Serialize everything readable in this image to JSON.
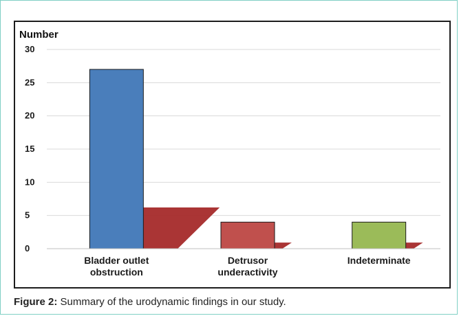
{
  "chart_data": {
    "type": "bar",
    "ylabel": "Number",
    "ylim": [
      0,
      30
    ],
    "yticks": [
      0,
      5,
      10,
      15,
      20,
      25,
      30
    ],
    "categories": [
      "Bladder outlet obstruction",
      "Detrusor underactivity",
      "Indeterminate"
    ],
    "category_lines": [
      [
        "Bladder outlet",
        "obstruction"
      ],
      [
        "Detrusor",
        "underactivity"
      ],
      [
        "Indeterminate"
      ]
    ],
    "values": [
      27,
      4,
      4
    ],
    "bar_colors": [
      "#4a7ebb",
      "#c0504d",
      "#9bbb59"
    ],
    "shadow_color": "#a52a2a",
    "grid": true,
    "legend": "none"
  },
  "caption": {
    "label": "Figure 2:",
    "text": "Summary of the urodynamic findings in our study."
  }
}
